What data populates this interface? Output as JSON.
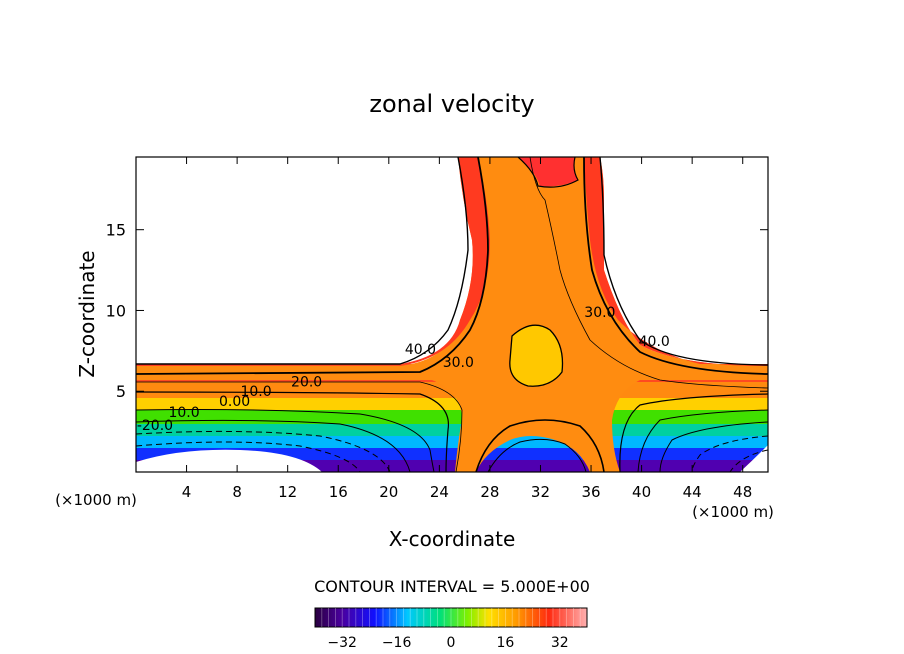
{
  "chart_data": {
    "type": "heatmap",
    "title": "zonal velocity",
    "xlabel": "X-coordinate",
    "ylabel": "Z-coordinate",
    "x_unit": "(×1000 m)",
    "x_unit_right": "(×1000 m)",
    "xlim": [
      0,
      50
    ],
    "ylim": [
      0,
      19.5
    ],
    "x_ticks": [
      4,
      8,
      12,
      16,
      20,
      24,
      28,
      32,
      36,
      40,
      44,
      48
    ],
    "y_ticks": [
      5,
      10,
      15
    ],
    "contour_interval_text": "CONTOUR INTERVAL = 5.000E+00",
    "colorbar": {
      "vmin": -40,
      "vmax": 40,
      "ticks": [
        -32,
        -16,
        0,
        16,
        32
      ],
      "tick_labels": [
        "−32",
        "−16",
        "0",
        "16",
        "32"
      ],
      "colormap": "rainbow (purple-blue-cyan-green-yellow-orange-red-pink)"
    },
    "contour_labels": [
      {
        "text": "40.0",
        "x": 22.5,
        "y": 7.3
      },
      {
        "text": "30.0",
        "x": 25.5,
        "y": 6.5
      },
      {
        "text": "30.0",
        "x": 36.7,
        "y": 9.6
      },
      {
        "text": "40.0",
        "x": 41.0,
        "y": 7.8
      },
      {
        "text": "20.0",
        "x": 13.5,
        "y": 5.3
      },
      {
        "text": "10.0",
        "x": 9.5,
        "y": 4.7
      },
      {
        "text": "0.00",
        "x": 7.8,
        "y": 4.1
      },
      {
        "text": "10.0",
        "x": 3.8,
        "y": 3.4
      },
      {
        "text": "-20.0",
        "x": 1.5,
        "y": 2.6
      }
    ]
  }
}
